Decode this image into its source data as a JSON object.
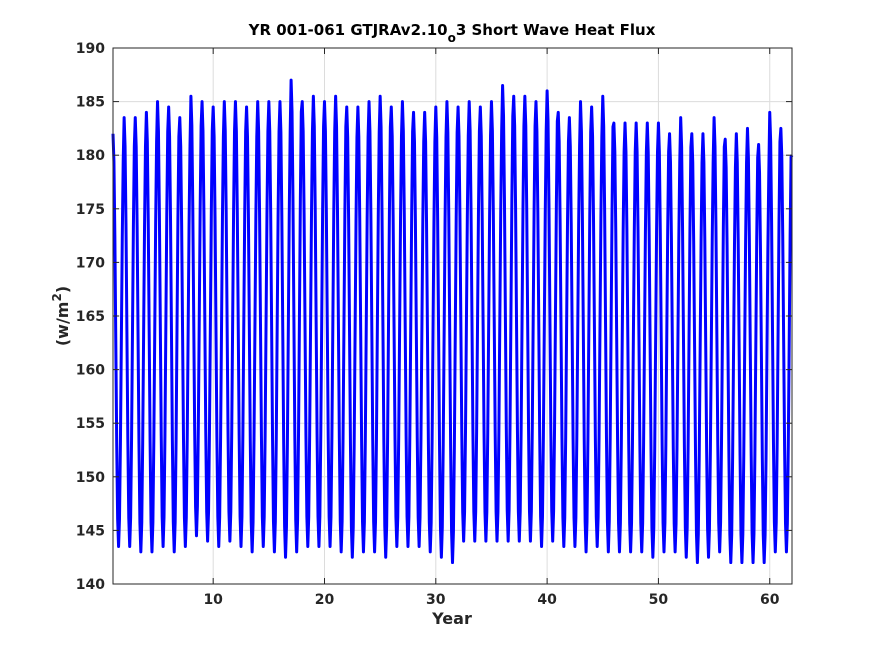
{
  "chart_data": {
    "type": "line",
    "title_main": "YR 001-061 GTJRAv2.10",
    "title_sub": "o",
    "title_tail": "3 Short Wave Heat Flux",
    "xlabel": "Year",
    "ylabel_main": "(w/m",
    "ylabel_sup": "2",
    "ylabel_tail": ")",
    "xlim": [
      1,
      62
    ],
    "ylim": [
      140,
      190
    ],
    "xticks": [
      10,
      20,
      30,
      40,
      50,
      60
    ],
    "yticks": [
      140,
      145,
      150,
      155,
      160,
      165,
      170,
      175,
      180,
      185,
      190
    ],
    "grid": true,
    "series": [
      {
        "color": "#0000ff",
        "samples_per_year": 12,
        "start_year": 1,
        "annual_max": [
          182,
          183.5,
          183.5,
          184,
          185,
          184.5,
          183.5,
          185.5,
          185,
          184.5,
          185,
          185,
          184.5,
          185,
          185,
          185,
          187,
          185,
          185.5,
          185,
          185.5,
          184.5,
          184.5,
          185,
          185.5,
          184.5,
          185,
          184,
          184,
          184.5,
          185,
          184.5,
          185,
          184.5,
          185,
          186.5,
          185.5,
          185.5,
          185,
          186,
          184,
          183.5,
          185,
          184.5,
          185.5,
          183,
          183,
          183,
          183,
          183,
          182,
          183.5,
          182,
          182,
          183.5,
          181.5,
          182,
          182.5,
          181,
          184,
          182.5,
          180
        ],
        "annual_min": [
          143.5,
          143.5,
          143,
          143,
          143.5,
          143,
          143.5,
          144.5,
          144,
          143.5,
          144,
          143.5,
          143,
          143.5,
          143,
          142.5,
          143,
          143.5,
          143.5,
          143.5,
          143,
          142.5,
          143,
          143,
          142.5,
          143.5,
          143.5,
          143.5,
          143,
          142.5,
          142,
          144,
          144,
          144,
          144,
          144,
          144,
          144,
          143.5,
          144,
          143.5,
          143.5,
          143,
          143.5,
          143,
          143,
          143,
          143,
          142.5,
          143,
          143,
          142.5,
          142,
          142.5,
          143,
          142,
          142,
          142,
          142,
          143,
          143,
          144
        ]
      }
    ]
  }
}
